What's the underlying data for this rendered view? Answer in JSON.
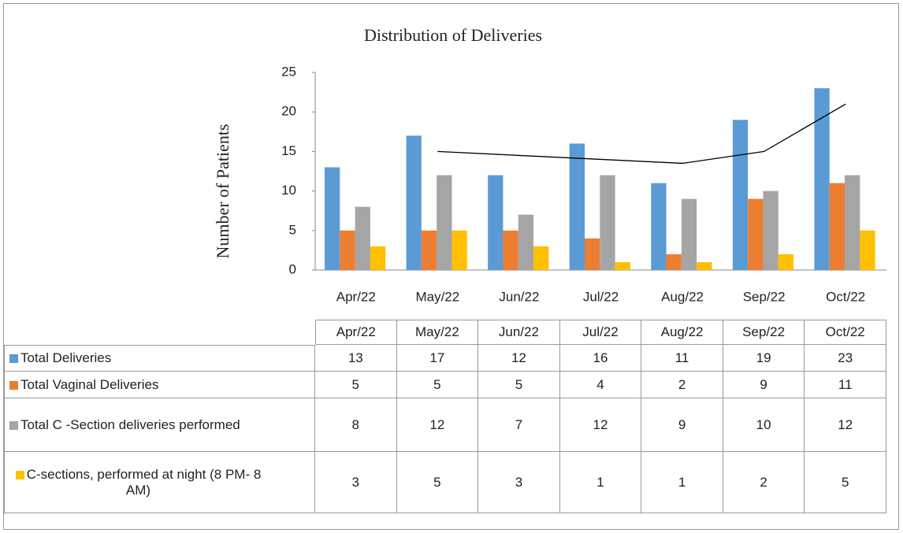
{
  "chart_data": {
    "type": "bar",
    "title": "Distribution of Deliveries",
    "y_label": "Number of Patients",
    "categories": [
      "Apr/22",
      "May/22",
      "Jun/22",
      "Jul/22",
      "Aug/22",
      "Sep/22",
      "Oct/22"
    ],
    "series": [
      {
        "name": "Total Deliveries",
        "color": "#5b9bd5",
        "values": [
          13,
          17,
          12,
          16,
          11,
          19,
          23
        ]
      },
      {
        "name": "Total Vaginal Deliveries",
        "color": "#ed7d31",
        "values": [
          5,
          5,
          5,
          4,
          2,
          9,
          11
        ]
      },
      {
        "name": "Total C -Section deliveries performed",
        "color": "#a5a5a5",
        "values": [
          8,
          12,
          7,
          12,
          9,
          10,
          12
        ]
      },
      {
        "name": "C-sections, performed at night (8 PM- 8 AM)",
        "color": "#ffc000",
        "values": [
          3,
          5,
          3,
          1,
          1,
          2,
          5
        ]
      }
    ],
    "trendline": {
      "color": "#000000",
      "values": [
        null,
        15,
        14.5,
        14,
        13.5,
        15,
        21
      ]
    },
    "ylim": [
      0,
      25
    ],
    "yticks": [
      0,
      5,
      10,
      15,
      20,
      25
    ],
    "grid": false,
    "data_table": true
  }
}
